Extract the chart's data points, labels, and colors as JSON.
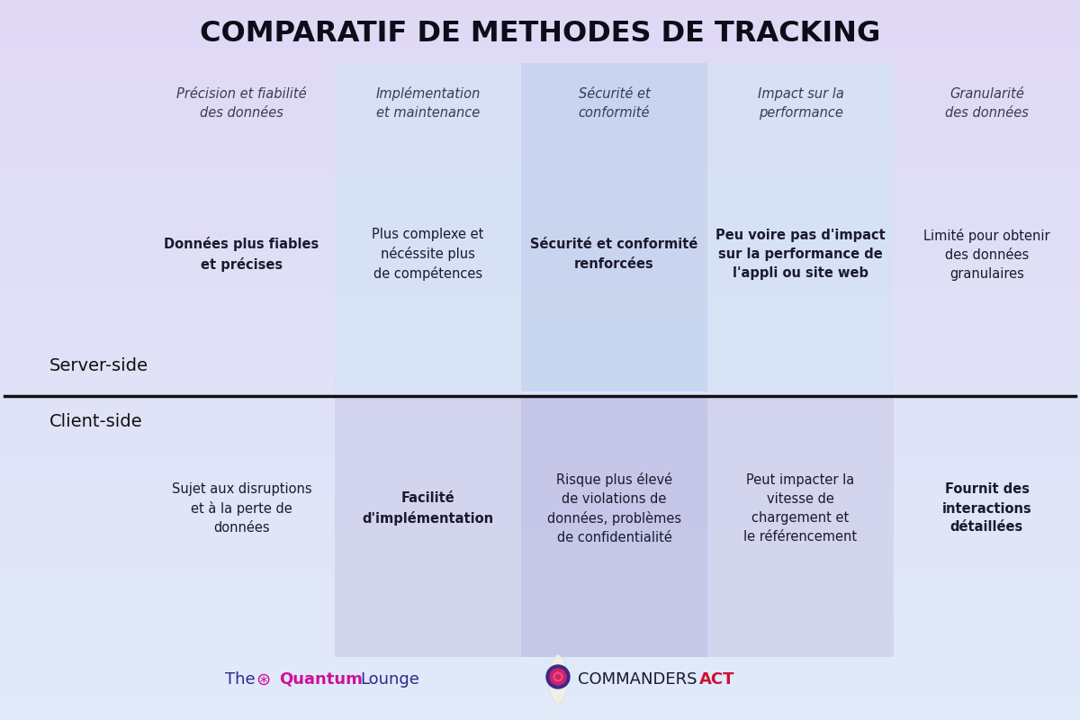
{
  "title": "COMPARATIF DE METHODES DE TRACKING",
  "columns": [
    "Précision et fiabilité\ndes données",
    "Implémentation\net maintenance",
    "Sécurité et\nconformité",
    "Impact sur la\nperformance",
    "Granularité\ndes données"
  ],
  "server_cells": [
    {
      "text": "Données plus fiables\net précises",
      "bold": true
    },
    {
      "text": "Plus complexe et\nnécéssite plus\nde compétences",
      "bold": false
    },
    {
      "text": "Sécurité et conformité\nrenforcées",
      "bold": true
    },
    {
      "text": "Peu voire pas d'impact\nsur la performance de\nl'appli ou site web",
      "bold": true
    },
    {
      "text": "Limité pour obtenir\ndes données\ngranulaires",
      "bold": false
    }
  ],
  "client_cells": [
    {
      "text": "Sujet aux disruptions\net à la perte de\ndonnées",
      "bold": false
    },
    {
      "text": "Facilité\nd'implémentation",
      "bold": true
    },
    {
      "text": "Risque plus élevé\nde violations de\ndonnées, problèmes\nde confidentialité",
      "bold": false
    },
    {
      "text": "Peut impacter la\nvitesse de\nchargement et\nle référencement",
      "bold": false
    },
    {
      "text": "Fournit des\ninteractions\ndétaillées",
      "bold": true
    }
  ],
  "bg_top_color": "#ccd8f0",
  "bg_bottom_color": "#d8d0ee",
  "col_highlight_odd": "#d4e3f5",
  "col_highlight_mid": "#c0d2ec",
  "col_highlight_client_odd": "#cccce8",
  "col_highlight_client_mid": "#b8b8e0",
  "text_color": "#1a1a2e",
  "header_italic_color": "#3a3a5c",
  "row_label_color": "#111111",
  "divider_color": "#111111",
  "title_fontsize": 23,
  "header_fontsize": 10.5,
  "cell_fontsize": 10.5,
  "row_label_fontsize": 14,
  "footer_fontsize": 13
}
